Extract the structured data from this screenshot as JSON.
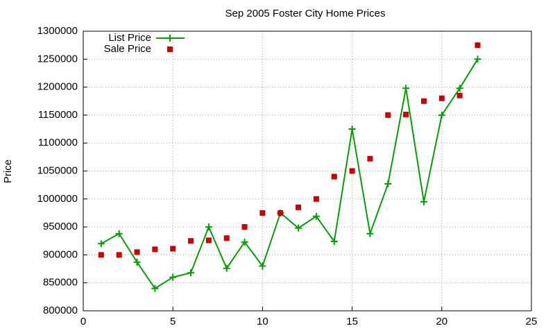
{
  "chart_data": {
    "type": "line",
    "title": "Sep 2005 Foster City Home Prices",
    "y_label": "Price",
    "x": [
      1,
      2,
      3,
      4,
      5,
      6,
      7,
      8,
      9,
      10,
      11,
      12,
      13,
      14,
      15,
      16,
      17,
      18,
      19,
      20,
      21,
      22
    ],
    "series": [
      {
        "name": "List Price",
        "color": "#00a000",
        "style": "linespoints",
        "values": [
          920000,
          938000,
          887000,
          840000,
          860000,
          868000,
          950000,
          876000,
          923000,
          880000,
          975000,
          948000,
          969000,
          924000,
          1125000,
          938000,
          1027000,
          1198000,
          995000,
          1150000,
          1198000,
          1250000
        ]
      },
      {
        "name": "Sale Price",
        "color": "#cc0000",
        "style": "points",
        "values": [
          900000,
          900000,
          905000,
          910000,
          911000,
          925000,
          926000,
          930000,
          950000,
          975000,
          975000,
          985000,
          1000000,
          1040000,
          1050000,
          1072000,
          1150000,
          1151000,
          1175000,
          1180000,
          1185000,
          1275000
        ]
      }
    ],
    "xlim": [
      0,
      25
    ],
    "xticks": [
      0,
      5,
      10,
      15,
      20,
      25
    ],
    "ylim": [
      800000,
      1300000
    ],
    "yticks": [
      800000,
      850000,
      900000,
      950000,
      1000000,
      1050000,
      1100000,
      1150000,
      1200000,
      1250000,
      1300000
    ],
    "grid": true,
    "legend": "top-left"
  }
}
